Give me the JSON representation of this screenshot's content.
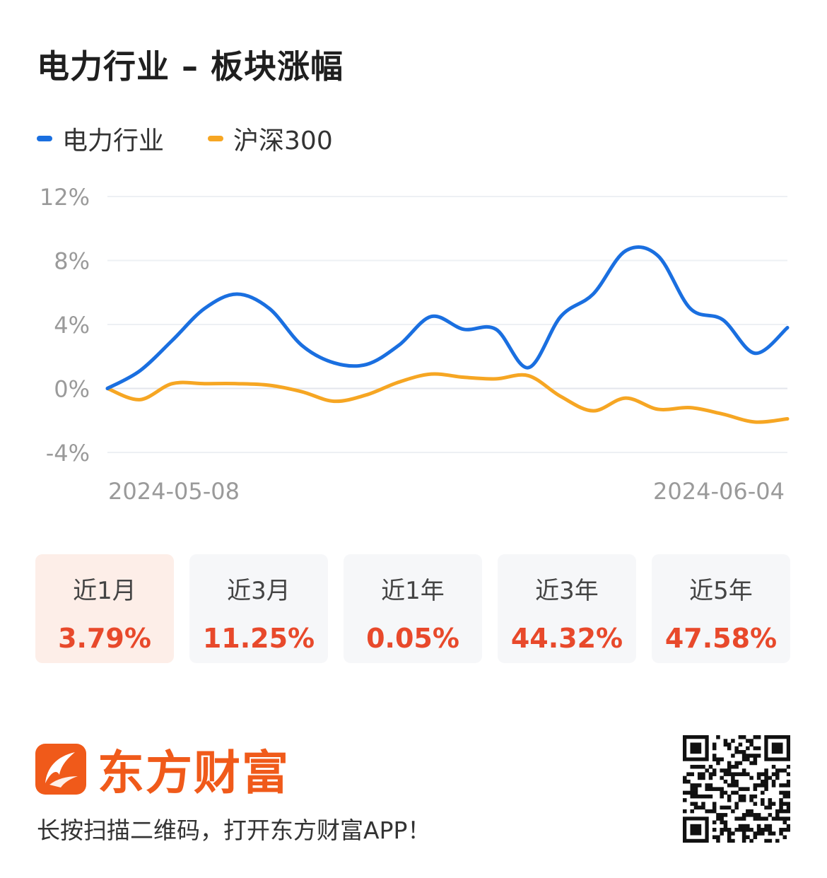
{
  "title": "电力行业 – 板块涨幅",
  "legend": [
    {
      "label": "电力行业",
      "color": "#1a6fe0"
    },
    {
      "label": "沪深300",
      "color": "#f6a623"
    }
  ],
  "chart_data": {
    "type": "line",
    "title": "电力行业 – 板块涨幅",
    "xlabel": "",
    "ylabel": "",
    "x_tick_labels": [
      "2024-05-08",
      "2024-06-04"
    ],
    "y_ticks": [
      "12%",
      "8%",
      "4%",
      "0%",
      "-4%"
    ],
    "ylim": [
      -4,
      12
    ],
    "grid": true,
    "legend_position": "top-left",
    "series": [
      {
        "name": "电力行业",
        "color": "#1a6fe0",
        "values": [
          0,
          1.1,
          3.0,
          5.0,
          5.9,
          5.0,
          2.7,
          1.6,
          1.5,
          2.7,
          4.5,
          3.7,
          3.7,
          1.3,
          4.5,
          5.9,
          8.6,
          8.3,
          5.0,
          4.3,
          2.2,
          3.8
        ]
      },
      {
        "name": "沪深300",
        "color": "#f6a623",
        "values": [
          0,
          -0.7,
          0.3,
          0.3,
          0.3,
          0.2,
          -0.2,
          -0.8,
          -0.4,
          0.4,
          0.9,
          0.7,
          0.6,
          0.8,
          -0.5,
          -1.4,
          -0.6,
          -1.3,
          -1.2,
          -1.6,
          -2.1,
          -1.9
        ]
      }
    ]
  },
  "periods": [
    {
      "label": "近1月",
      "value": "3.79%"
    },
    {
      "label": "近3月",
      "value": "11.25%"
    },
    {
      "label": "近1年",
      "value": "0.05%"
    },
    {
      "label": "近3年",
      "value": "44.32%"
    },
    {
      "label": "近5年",
      "value": "47.58%"
    }
  ],
  "brand": {
    "name": "东方财富",
    "logo_icon": "eastmoney-logo-icon",
    "color": "#f05a1a"
  },
  "footer": {
    "tagline": "长按扫描二维码，打开东方财富APP！",
    "qr_icon": "qr-code-icon"
  }
}
